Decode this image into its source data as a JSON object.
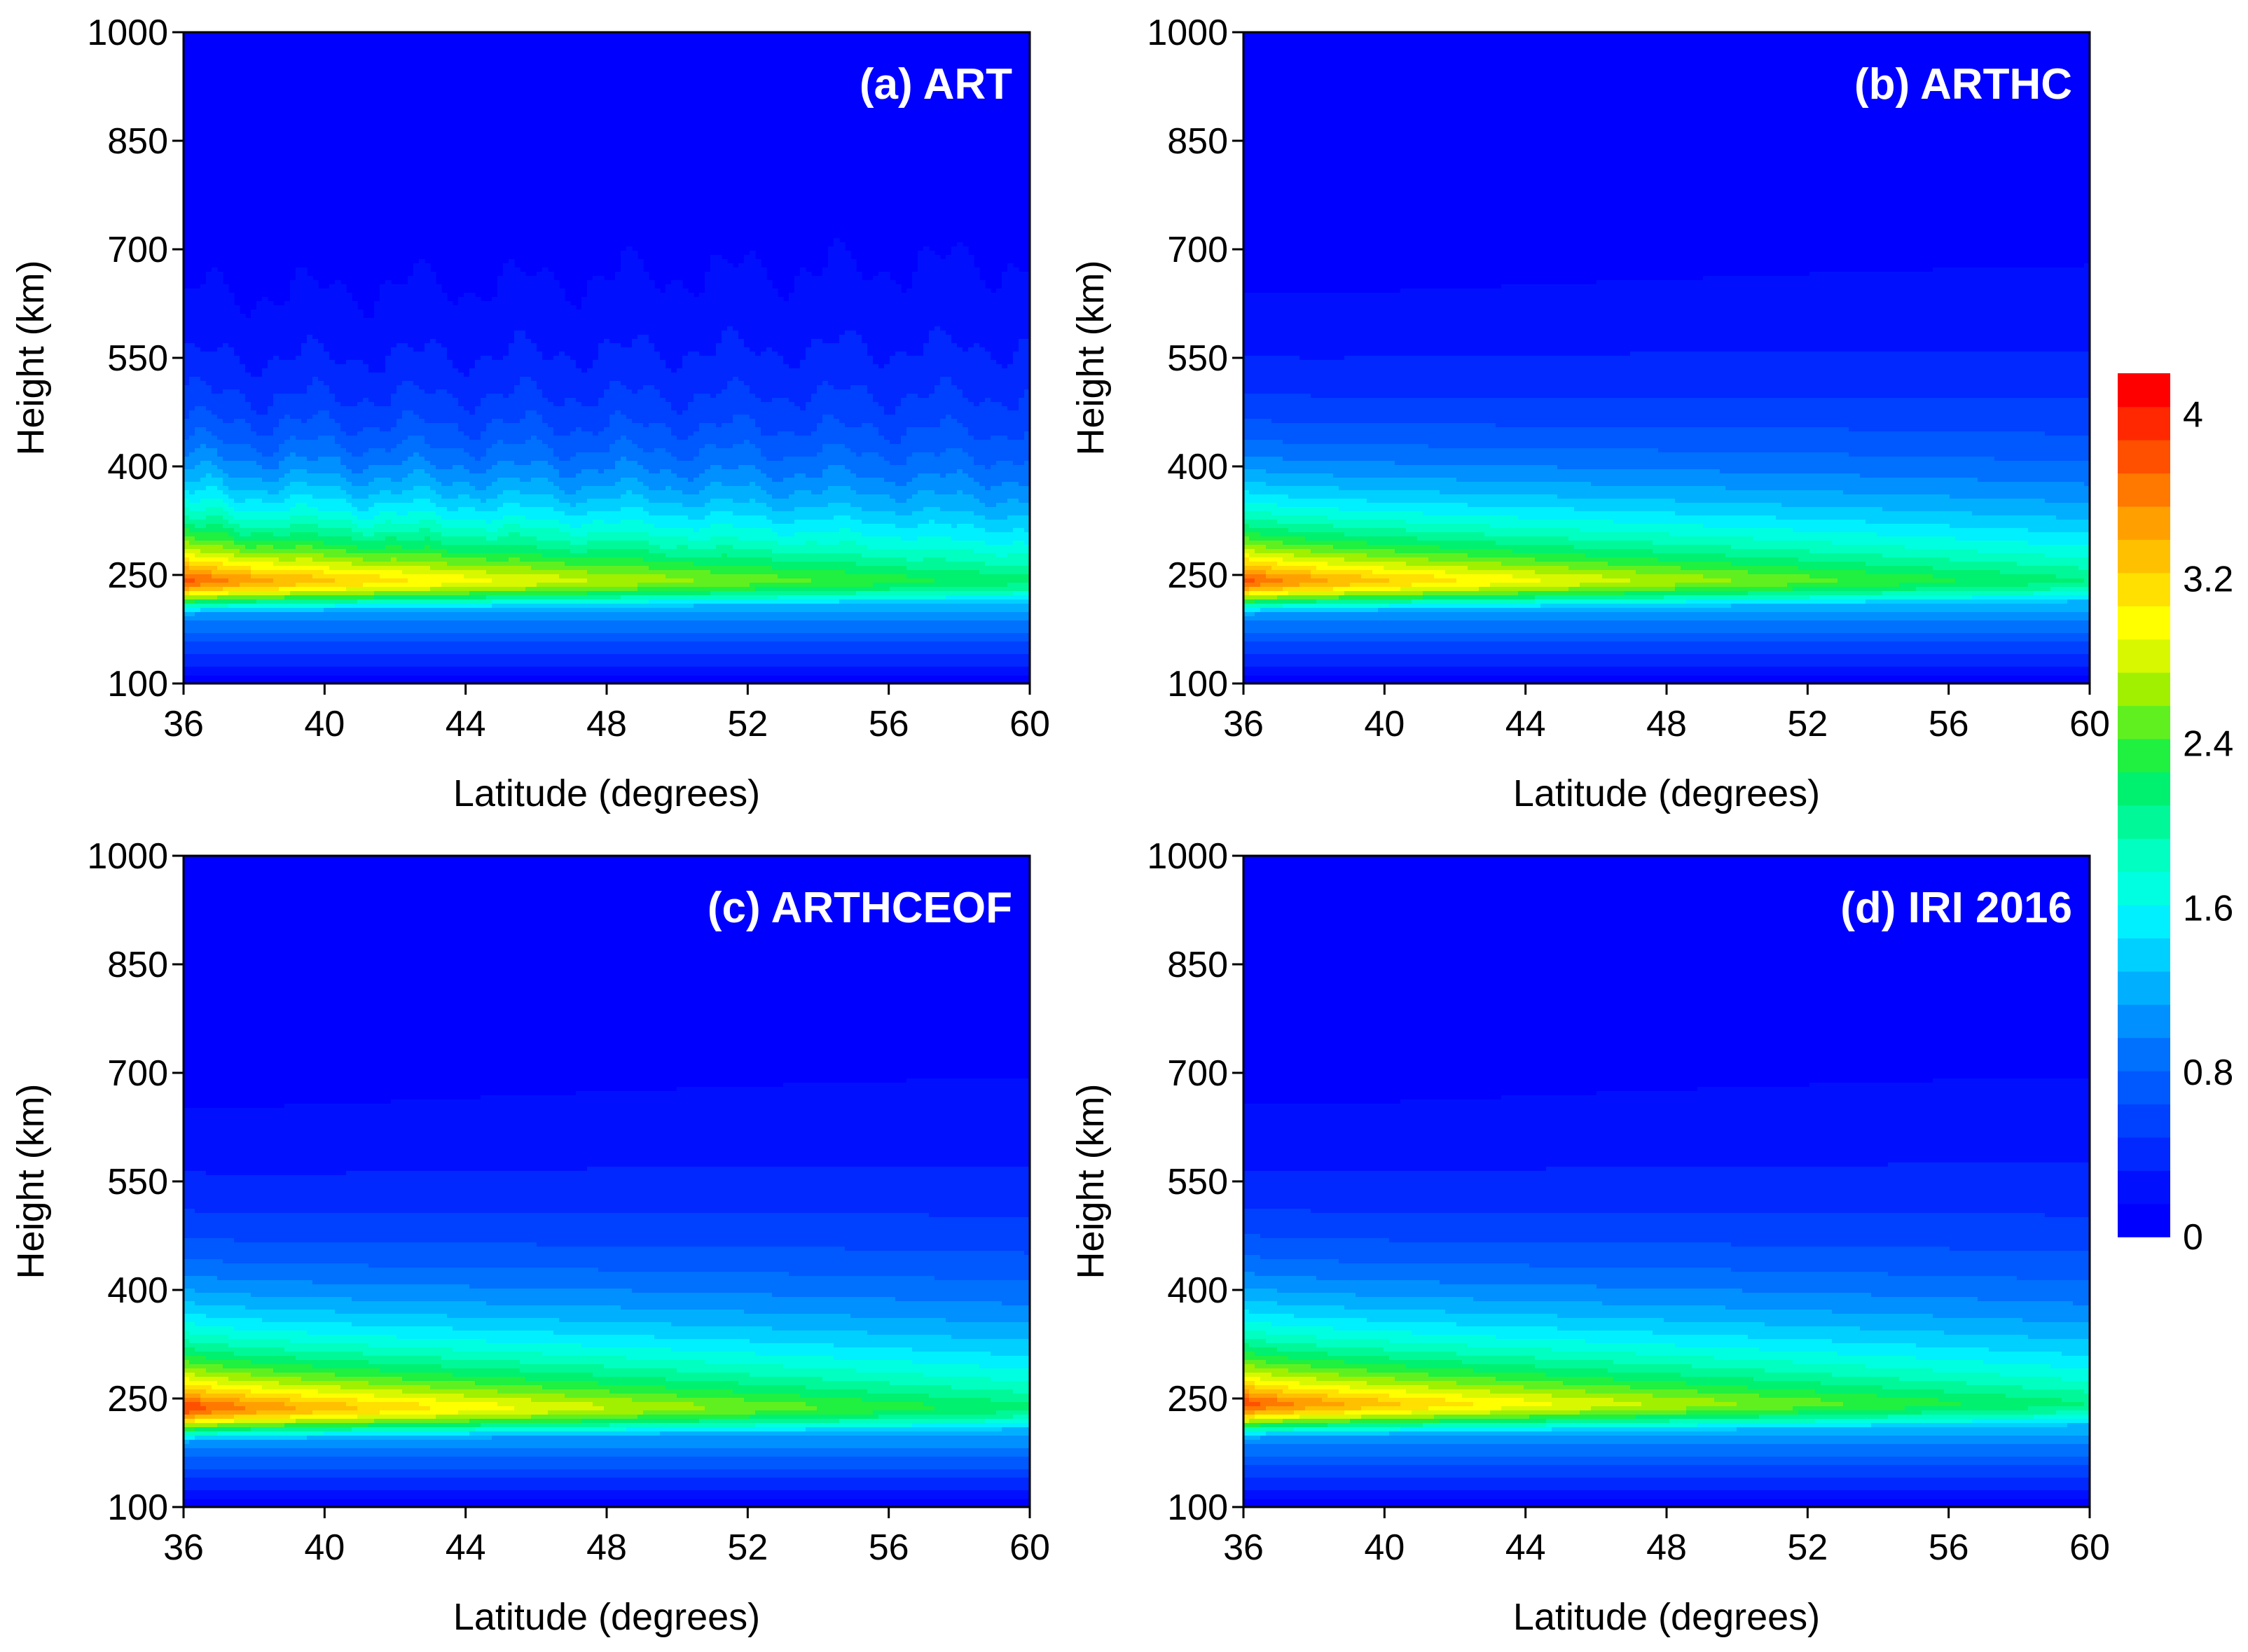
{
  "chart_data": [
    {
      "type": "heatmap",
      "panel_id": "a",
      "title": "(a) ART",
      "xlabel": "Latitude (degrees)",
      "ylabel": "Height (km)",
      "xlim": [
        36,
        60
      ],
      "ylim": [
        100,
        1000
      ],
      "xticks": [
        "36",
        "40",
        "44",
        "48",
        "52",
        "56",
        "60"
      ],
      "yticks": [
        "100",
        "250",
        "400",
        "550",
        "700",
        "850",
        "1000"
      ],
      "peak_height_km": 245,
      "peak_value_at_36": 3.85,
      "peak_value_at_60": 2.15,
      "upper_decay_km": 125,
      "lower_decay_km": 45,
      "ragged_contours": true
    },
    {
      "type": "heatmap",
      "panel_id": "b",
      "title": "(b) ARTHC",
      "xlabel": "Latitude (degrees)",
      "ylabel": "Height (km)",
      "xlim": [
        36,
        60
      ],
      "ylim": [
        100,
        1000
      ],
      "xticks": [
        "36",
        "40",
        "44",
        "48",
        "52",
        "56",
        "60"
      ],
      "yticks": [
        "100",
        "250",
        "400",
        "550",
        "700",
        "850",
        "1000"
      ],
      "peak_height_km": 245,
      "peak_value_at_36": 3.85,
      "peak_value_at_60": 2.1,
      "upper_decay_km": 125,
      "lower_decay_km": 45,
      "ragged_contours": false
    },
    {
      "type": "heatmap",
      "panel_id": "c",
      "title": "(c) ARTHCEOF",
      "xlabel": "Latitude (degrees)",
      "ylabel": "Height (km)",
      "xlim": [
        36,
        60
      ],
      "ylim": [
        100,
        1000
      ],
      "xticks": [
        "36",
        "40",
        "44",
        "48",
        "52",
        "56",
        "60"
      ],
      "yticks": [
        "100",
        "250",
        "400",
        "550",
        "700",
        "850",
        "1000"
      ],
      "peak_height_km": 240,
      "peak_value_at_36": 3.95,
      "peak_value_at_60": 2.15,
      "upper_decay_km": 130,
      "lower_decay_km": 45,
      "ragged_contours": false
    },
    {
      "type": "heatmap",
      "panel_id": "d",
      "title": "(d) IRI 2016",
      "xlabel": "Latitude (degrees)",
      "ylabel": "Height (km)",
      "xlim": [
        36,
        60
      ],
      "ylim": [
        100,
        1000
      ],
      "xticks": [
        "36",
        "40",
        "44",
        "48",
        "52",
        "56",
        "60"
      ],
      "yticks": [
        "100",
        "250",
        "400",
        "550",
        "700",
        "850",
        "1000"
      ],
      "peak_height_km": 245,
      "peak_value_at_36": 3.9,
      "peak_value_at_60": 2.1,
      "upper_decay_km": 130,
      "lower_decay_km": 45,
      "ragged_contours": false
    }
  ],
  "colorbar": {
    "range": [
      0,
      4.2
    ],
    "ticks": [
      {
        "value": 0,
        "label": "0"
      },
      {
        "value": 0.8,
        "label": "0.8"
      },
      {
        "value": 1.6,
        "label": "1.6"
      },
      {
        "value": 2.4,
        "label": "2.4"
      },
      {
        "value": 3.2,
        "label": "3.2"
      },
      {
        "value": 4,
        "label": "4"
      }
    ],
    "colors": [
      "#0000ff",
      "#0010ff",
      "#0028ff",
      "#0040ff",
      "#0058ff",
      "#0070ff",
      "#0090ff",
      "#00b0ff",
      "#00d0ff",
      "#00f0ff",
      "#00ffe0",
      "#00ffc0",
      "#00f898",
      "#00f070",
      "#20f040",
      "#60f020",
      "#a0f000",
      "#d8f800",
      "#ffff00",
      "#ffe000",
      "#ffc000",
      "#ffa000",
      "#ff7800",
      "#ff5000",
      "#ff2800",
      "#ff0000"
    ]
  }
}
